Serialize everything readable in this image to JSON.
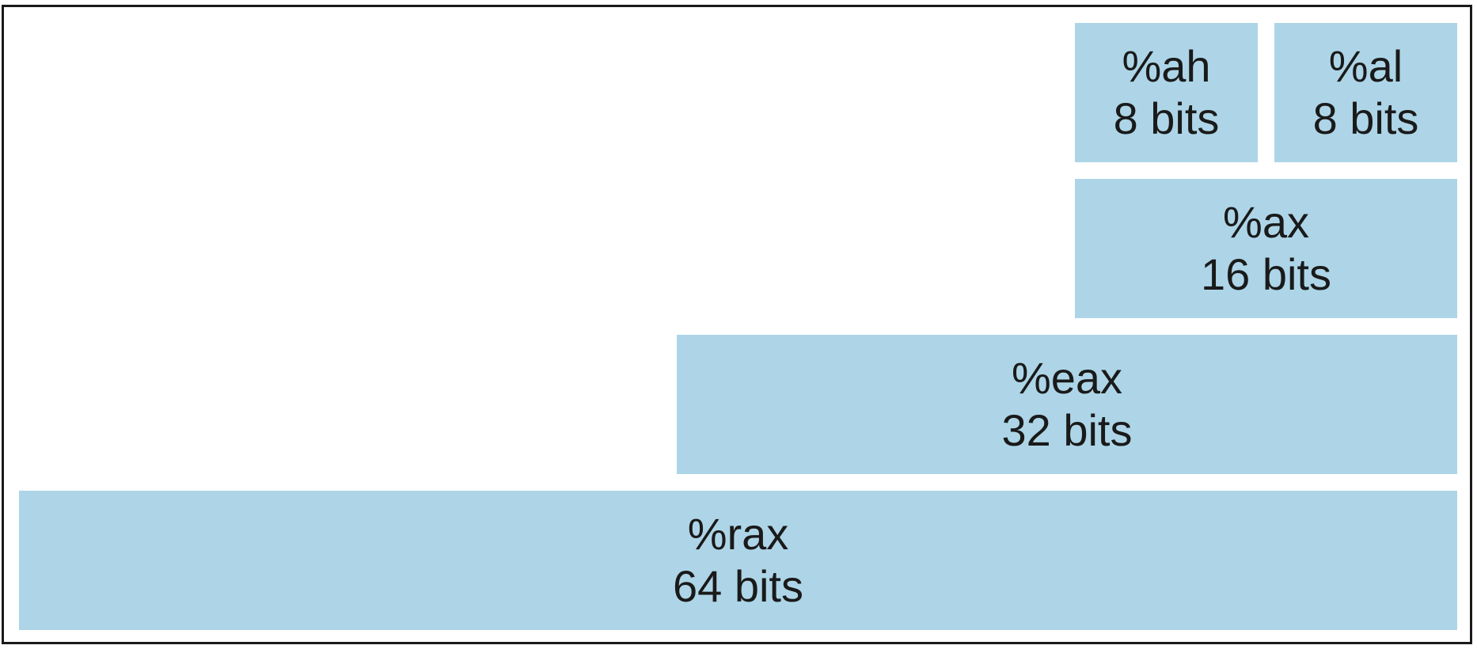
{
  "colors": {
    "block_fill": "#add5e7",
    "border": "#1a1a1a",
    "text": "#1a1a1a",
    "background": "#ffffff"
  },
  "registers": [
    {
      "key": "ah",
      "name": "%ah",
      "bits": "8 bits"
    },
    {
      "key": "al",
      "name": "%al",
      "bits": "8 bits"
    },
    {
      "key": "ax",
      "name": "%ax",
      "bits": "16 bits"
    },
    {
      "key": "eax",
      "name": "%eax",
      "bits": "32 bits"
    },
    {
      "key": "rax",
      "name": "%rax",
      "bits": "64 bits"
    }
  ]
}
